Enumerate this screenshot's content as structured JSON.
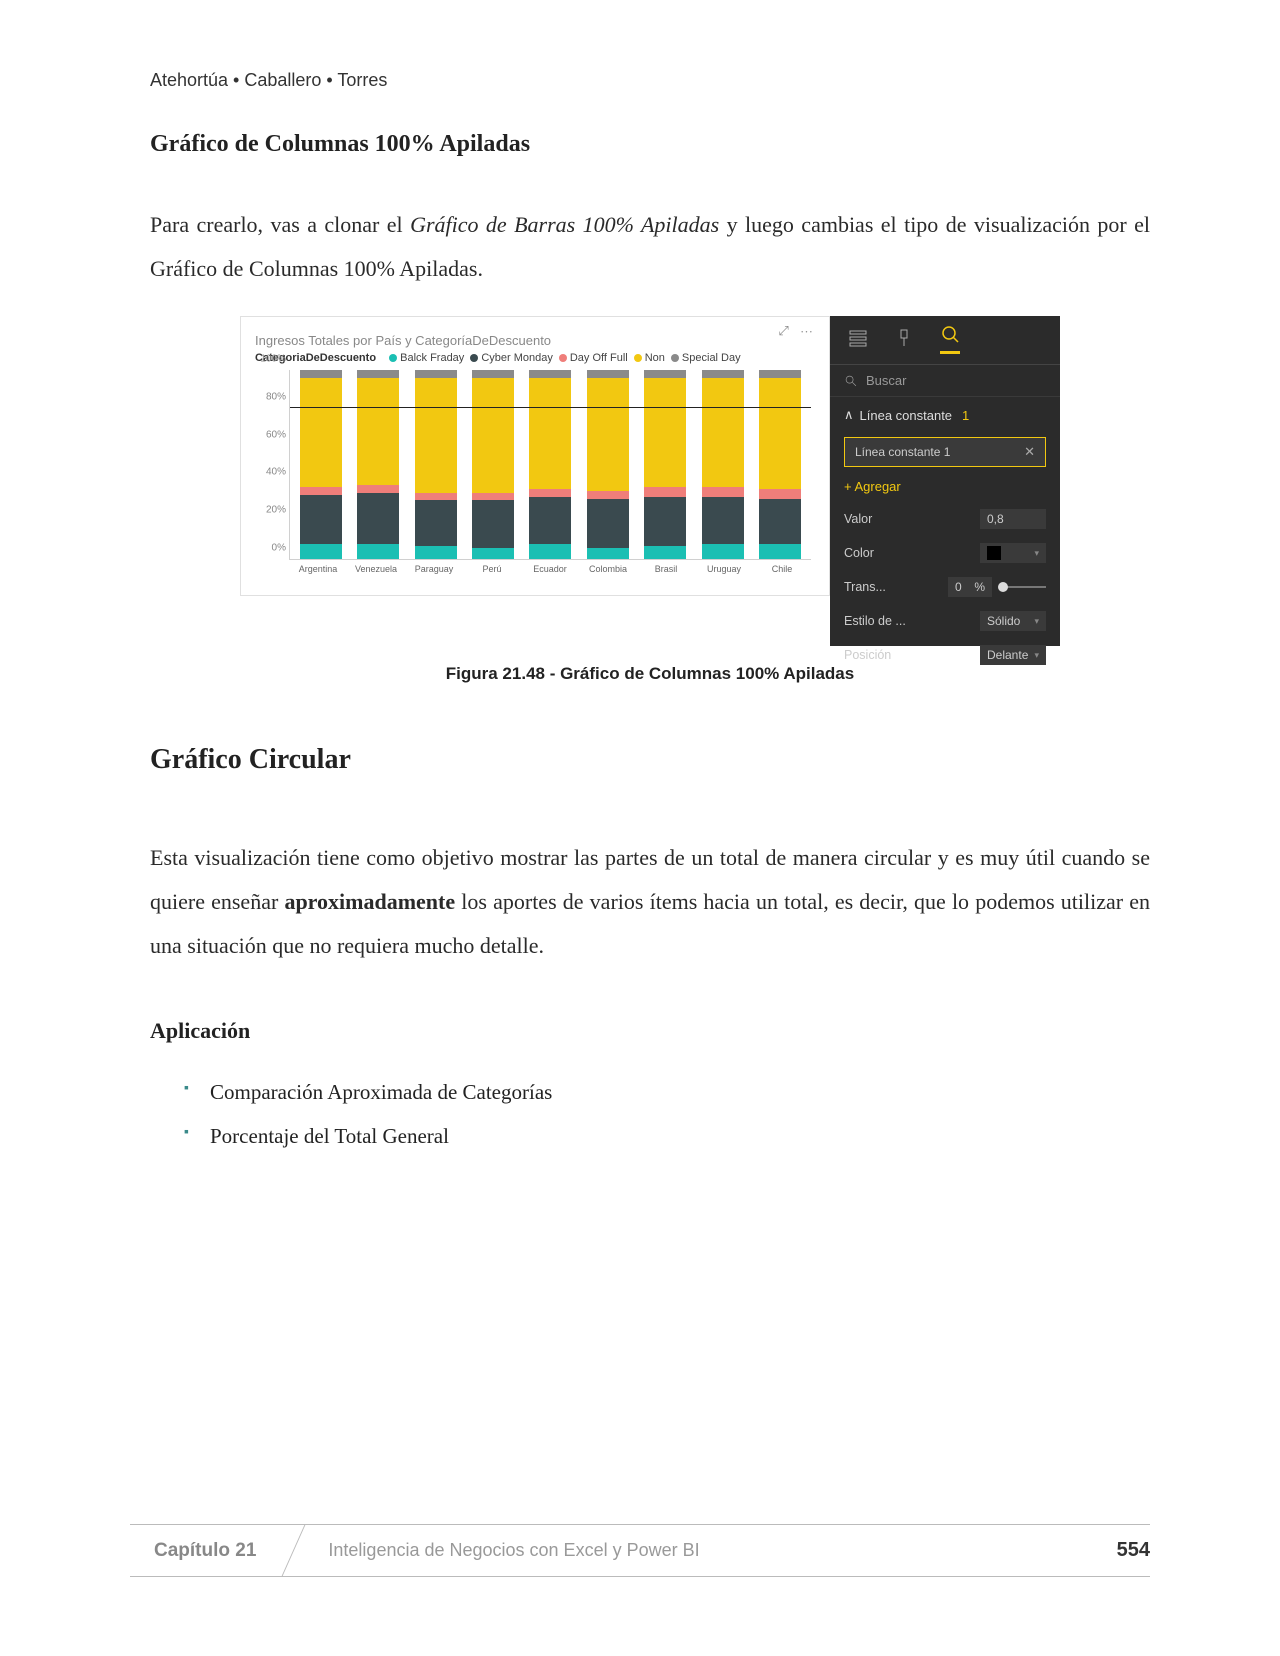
{
  "header": {
    "authors": "Atehortúa • Caballero • Torres"
  },
  "section1": {
    "title": "Gráfico de Columnas 100% Apiladas",
    "para_a": "Para crearlo, vas a clonar el ",
    "para_ital": "Gráfico de Barras 100% Apiladas",
    "para_b": " y luego cambias el tipo de visualización por el Gráfico de Columnas 100% Apiladas."
  },
  "chart": {
    "type": "stacked-column-100",
    "title": "Ingresos Totales por País y CategoríaDeDescuento",
    "legend_label": "CategoriaDeDescuento",
    "legend": [
      {
        "name": "Balck Fraday",
        "color": "#1bbfb3"
      },
      {
        "name": "Cyber Monday",
        "color": "#3a4a4f"
      },
      {
        "name": "Day Off Full",
        "color": "#ef7e7a"
      },
      {
        "name": "Non",
        "color": "#f2c811"
      },
      {
        "name": "Special Day",
        "color": "#8a8a8a"
      }
    ],
    "y_ticks": [
      "0%",
      "20%",
      "40%",
      "60%",
      "80%",
      "100%"
    ],
    "reference_line_pct": 80,
    "categories": [
      "Argentina",
      "Venezuela",
      "Paraguay",
      "Perú",
      "Ecuador",
      "Colombia",
      "Brasil",
      "Uruguay",
      "Chile"
    ],
    "series_pct": [
      {
        "bf": 8,
        "cm": 26,
        "do": 4,
        "non": 58,
        "sd": 4
      },
      {
        "bf": 8,
        "cm": 27,
        "do": 4,
        "non": 57,
        "sd": 4
      },
      {
        "bf": 7,
        "cm": 24,
        "do": 4,
        "non": 61,
        "sd": 4
      },
      {
        "bf": 6,
        "cm": 25,
        "do": 4,
        "non": 61,
        "sd": 4
      },
      {
        "bf": 8,
        "cm": 25,
        "do": 4,
        "non": 59,
        "sd": 4
      },
      {
        "bf": 6,
        "cm": 26,
        "do": 4,
        "non": 60,
        "sd": 4
      },
      {
        "bf": 7,
        "cm": 26,
        "do": 5,
        "non": 58,
        "sd": 4
      },
      {
        "bf": 8,
        "cm": 25,
        "do": 5,
        "non": 58,
        "sd": 4
      },
      {
        "bf": 8,
        "cm": 24,
        "do": 5,
        "non": 59,
        "sd": 4
      }
    ],
    "colors": {
      "bf": "#1bbfb3",
      "cm": "#3a4a4f",
      "do": "#ef7e7a",
      "non": "#f2c811",
      "sd": "#8a8a8a"
    },
    "background": "#ffffff"
  },
  "pane": {
    "search": "Buscar",
    "section": "Línea constante",
    "section_count": "1",
    "item": "Línea constante 1",
    "add": "+ Agregar",
    "props": {
      "valor_label": "Valor",
      "valor": "0,8",
      "color_label": "Color",
      "color": "#000000",
      "trans_label": "Trans...",
      "trans": "0",
      "trans_unit": "%",
      "estilo_label": "Estilo de ...",
      "estilo": "Sólido",
      "pos_label": "Posición",
      "pos": "Delante"
    }
  },
  "caption": "Figura 21.48 - Gráfico de Columnas 100% Apiladas",
  "section2": {
    "title": "Gráfico Circular",
    "para_a": "Esta visualización tiene como objetivo mostrar las partes de un total de manera circular y es muy útil cuando se quiere enseñar ",
    "para_bold": "aproximadamente",
    "para_b": " los aportes de varios ítems hacia un total, es decir, que lo podemos utilizar en una situación que no requiera mucho detalle."
  },
  "application": {
    "title": "Aplicación",
    "items": [
      "Comparación Aproximada de Categorías",
      "Porcentaje del Total General"
    ]
  },
  "footer": {
    "chapter": "Capítulo 21",
    "book": "Inteligencia de Negocios con Excel y Power BI",
    "page": "554"
  }
}
